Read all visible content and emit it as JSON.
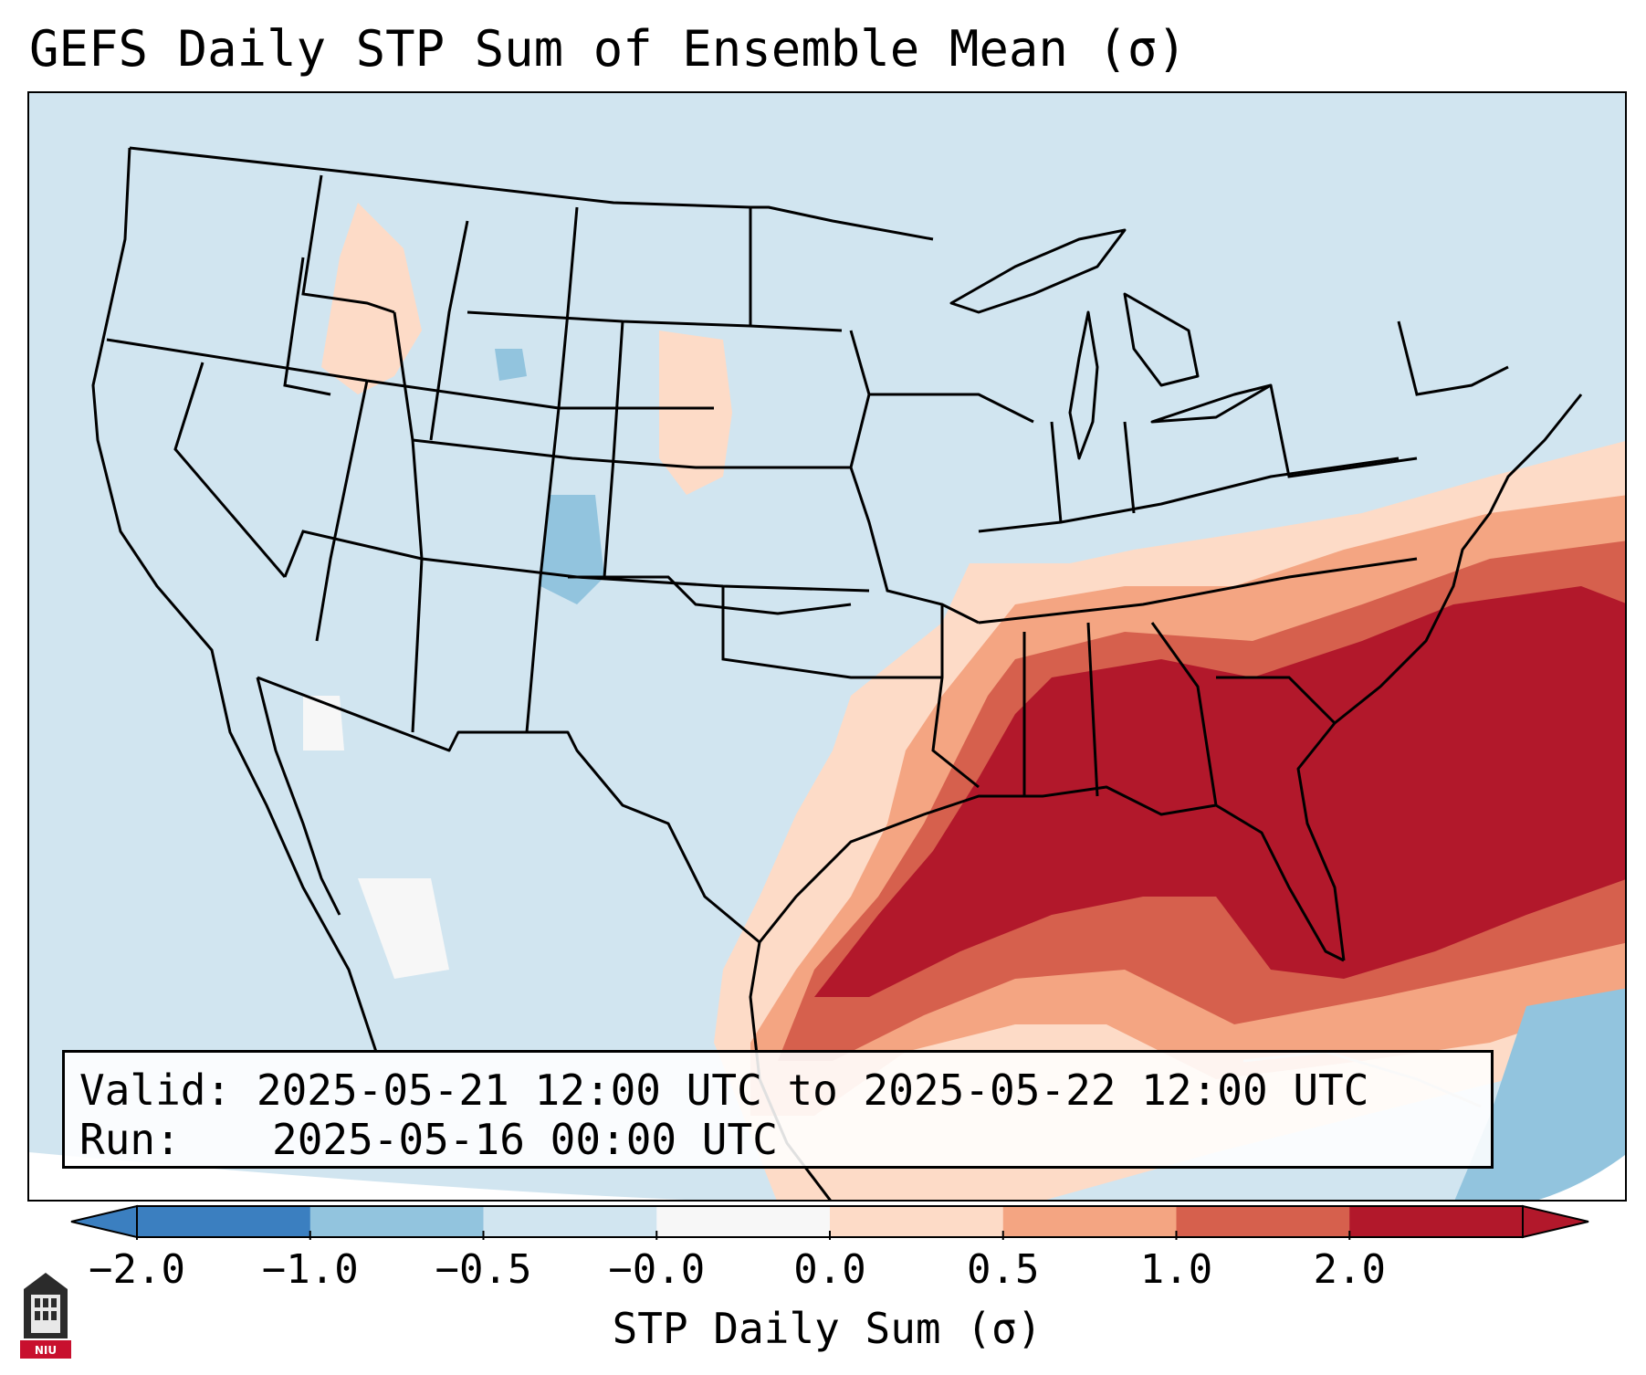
{
  "title": "GEFS Daily STP Sum of Ensemble Mean (σ)",
  "info": {
    "valid_label": "Valid:",
    "valid_value": "2025-05-21 12:00 UTC to 2025-05-22 12:00 UTC",
    "run_label": "Run:",
    "run_value": "2025-05-16 00:00 UTC"
  },
  "colorbar": {
    "label": "STP Daily Sum (σ)",
    "ticks": [
      "−2.0",
      "−1.0",
      "−0.5",
      "−0.0",
      "0.0",
      "0.5",
      "1.0",
      "2.0"
    ],
    "colors": [
      "#3b7fc0",
      "#92c4de",
      "#d1e5f0",
      "#f7f7f7",
      "#fddbc7",
      "#f4a582",
      "#d6604d",
      "#b2182b"
    ],
    "extend": "both"
  },
  "map": {
    "projection": "Lambert Conformal (CONUS)",
    "background_color": "#d1e5f0",
    "levels": [
      {
        "name": "2.0",
        "color": "#b2182b"
      },
      {
        "name": "1.0",
        "color": "#d6604d"
      },
      {
        "name": "0.5",
        "color": "#f4a582"
      },
      {
        "name": "0.0",
        "color": "#fddbc7"
      },
      {
        "name": "neg-0.5",
        "color": "#92c4de"
      },
      {
        "name": "zero",
        "color": "#f7f7f7"
      }
    ]
  },
  "logo": {
    "text": "NIU",
    "icon": "university-tower-icon"
  }
}
